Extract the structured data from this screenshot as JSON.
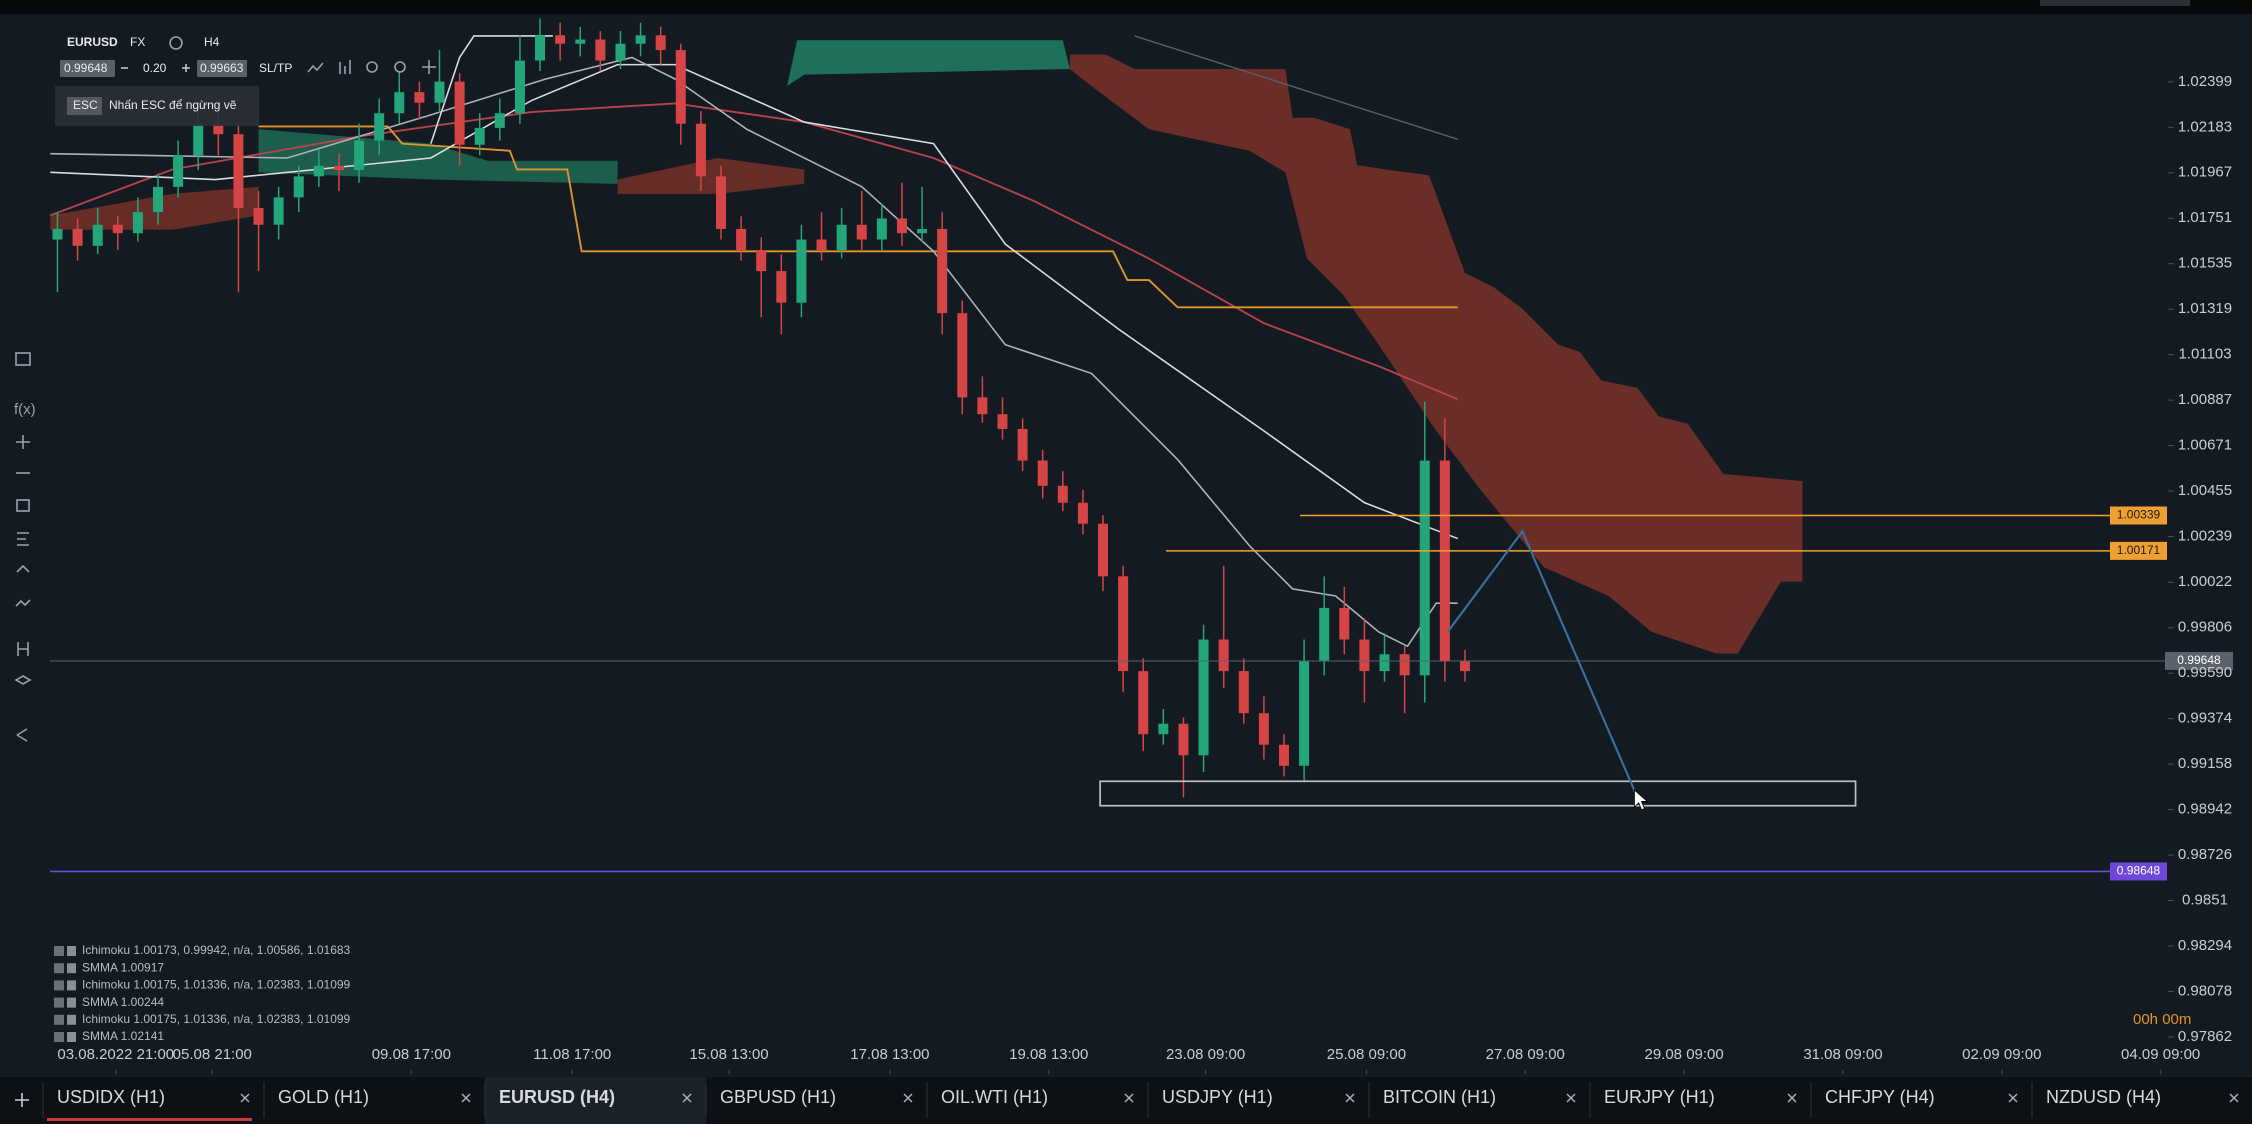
{
  "header": {
    "symbol": "EURUSD",
    "market": "FX",
    "timeframe": "H4",
    "bid": "0.99648",
    "spread": "0.20",
    "ask": "0.99663",
    "sltp": "SL/TP",
    "esc_key": "ESC",
    "esc_hint": "Nhấn ESC để ngừng vẽ"
  },
  "toolbar_label": "f(x)",
  "chart": {
    "type": "candlestick",
    "up_color": "#22a67a",
    "down_color": "#d64545",
    "ylim": [
      0.97705,
      1.02706
    ],
    "yticks": [
      1.02399,
      1.02183,
      1.01967,
      1.01751,
      1.01535,
      1.01319,
      1.01103,
      1.00887,
      1.00671,
      1.00455,
      1.00239,
      1.00022,
      0.99806,
      {
        "value": 0.9959,
        "label": "0.99590"
      },
      0.99374,
      0.99158,
      0.98942,
      0.98726,
      0.9851,
      0.98294,
      0.98078,
      0.97862
    ],
    "xlim": [
      -2.5,
      105
    ],
    "xticks": [
      {
        "value": 2.9,
        "label": "03.08.2022 21:00"
      },
      {
        "value": 7.7,
        "label": "05.08 21:00"
      },
      {
        "value": 17.6,
        "label": "09.08 17:00"
      },
      {
        "value": 25.6,
        "label": "11.08 17:00"
      },
      {
        "value": 33.4,
        "label": "15.08 13:00"
      },
      {
        "value": 41.4,
        "label": "17.08 13:00"
      },
      {
        "value": 49.3,
        "label": "19.08 13:00"
      },
      {
        "value": 57.1,
        "label": "23.08 09:00"
      },
      {
        "value": 65.1,
        "label": "25.08 09:00"
      },
      {
        "value": 73,
        "label": "27.08 09:00"
      },
      {
        "value": 80.9,
        "label": "29.08 09:00"
      },
      {
        "value": 88.8,
        "label": "31.08 09:00"
      },
      {
        "value": 96.7,
        "label": "02.09 09:00"
      },
      {
        "value": 104.6,
        "label": "04.09 09:00"
      }
    ],
    "candles": [
      [
        1.0165,
        1.0178,
        1.014,
        1.017
      ],
      [
        1.017,
        1.0175,
        1.0155,
        1.0162
      ],
      [
        1.0162,
        1.018,
        1.0158,
        1.0172
      ],
      [
        1.0172,
        1.0176,
        1.016,
        1.0168
      ],
      [
        1.0168,
        1.0185,
        1.0164,
        1.0178
      ],
      [
        1.0178,
        1.0196,
        1.0172,
        1.019
      ],
      [
        1.019,
        1.0212,
        1.0185,
        1.0205
      ],
      [
        1.0205,
        1.0228,
        1.0198,
        1.022
      ],
      [
        1.022,
        1.0226,
        1.0205,
        1.0215
      ],
      [
        1.0215,
        1.022,
        1.014,
        1.018
      ],
      [
        1.018,
        1.0188,
        1.015,
        1.0172
      ],
      [
        1.0172,
        1.019,
        1.0165,
        1.0185
      ],
      [
        1.0185,
        1.02,
        1.0178,
        1.0195
      ],
      [
        1.0195,
        1.0208,
        1.019,
        1.02
      ],
      [
        1.02,
        1.0206,
        1.0188,
        1.0198
      ],
      [
        1.0198,
        1.022,
        1.0192,
        1.0212
      ],
      [
        1.0212,
        1.0232,
        1.0205,
        1.0225
      ],
      [
        1.0225,
        1.0245,
        1.022,
        1.0235
      ],
      [
        1.0235,
        1.024,
        1.0222,
        1.023
      ],
      [
        1.023,
        1.0255,
        1.0225,
        1.024
      ],
      [
        1.024,
        1.0244,
        1.02,
        1.021
      ],
      [
        1.021,
        1.0225,
        1.0205,
        1.0218
      ],
      [
        1.0218,
        1.0232,
        1.0212,
        1.0225
      ],
      [
        1.0225,
        1.0262,
        1.022,
        1.025
      ],
      [
        1.025,
        1.027,
        1.0245,
        1.0262
      ],
      [
        1.0262,
        1.0268,
        1.025,
        1.0258
      ],
      [
        1.0258,
        1.0266,
        1.0252,
        1.026
      ],
      [
        1.026,
        1.0264,
        1.0245,
        1.025
      ],
      [
        1.025,
        1.0264,
        1.0246,
        1.0258
      ],
      [
        1.0258,
        1.0268,
        1.0252,
        1.0262
      ],
      [
        1.0262,
        1.0266,
        1.0248,
        1.0255
      ],
      [
        1.0255,
        1.0258,
        1.021,
        1.022
      ],
      [
        1.022,
        1.0226,
        1.0188,
        1.0195
      ],
      [
        1.0195,
        1.02,
        1.0165,
        1.017
      ],
      [
        1.017,
        1.0176,
        1.0155,
        1.016
      ],
      [
        1.016,
        1.0166,
        1.0128,
        1.015
      ],
      [
        1.015,
        1.0158,
        1.012,
        1.0135
      ],
      [
        1.0135,
        1.0172,
        1.0128,
        1.0165
      ],
      [
        1.0165,
        1.0178,
        1.0155,
        1.016
      ],
      [
        1.016,
        1.018,
        1.0156,
        1.0172
      ],
      [
        1.0172,
        1.0188,
        1.016,
        1.0165
      ],
      [
        1.0165,
        1.0182,
        1.016,
        1.0175
      ],
      [
        1.0175,
        1.0192,
        1.0162,
        1.0168
      ],
      [
        1.0168,
        1.019,
        1.0164,
        1.017
      ],
      [
        1.017,
        1.0178,
        1.012,
        1.013
      ],
      [
        1.013,
        1.0136,
        1.0082,
        1.009
      ],
      [
        1.009,
        1.01,
        1.0078,
        1.0082
      ],
      [
        1.0082,
        1.009,
        1.007,
        1.0075
      ],
      [
        1.0075,
        1.008,
        1.0055,
        1.006
      ],
      [
        1.006,
        1.0065,
        1.0042,
        1.0048
      ],
      [
        1.0048,
        1.0055,
        1.0036,
        1.004
      ],
      [
        1.004,
        1.0046,
        1.0025,
        1.003
      ],
      [
        1.003,
        1.0034,
        0.9998,
        1.0005
      ],
      [
        1.0005,
        1.001,
        0.995,
        0.996
      ],
      [
        0.996,
        0.9966,
        0.9922,
        0.993
      ],
      [
        0.993,
        0.9942,
        0.9925,
        0.9935
      ],
      [
        0.9935,
        0.9938,
        0.99,
        0.992
      ],
      [
        0.992,
        0.9982,
        0.9912,
        0.9975
      ],
      [
        0.9975,
        1.001,
        0.9952,
        0.996
      ],
      [
        0.996,
        0.9966,
        0.9935,
        0.994
      ],
      [
        0.994,
        0.9948,
        0.9918,
        0.9925
      ],
      [
        0.9925,
        0.993,
        0.991,
        0.9915
      ],
      [
        0.9915,
        0.9975,
        0.9908,
        0.9965
      ],
      [
        0.9965,
        1.0005,
        0.9958,
        0.999
      ],
      [
        0.999,
        1.0,
        0.9968,
        0.9975
      ],
      [
        0.9975,
        0.9985,
        0.9945,
        0.996
      ],
      [
        0.996,
        0.9978,
        0.9955,
        0.9968
      ],
      [
        0.9968,
        0.9972,
        0.994,
        0.9958
      ],
      [
        0.9958,
        1.0088,
        0.9945,
        1.006
      ],
      [
        1.006,
        1.008,
        0.9955,
        0.9965
      ],
      [
        0.9965,
        0.997,
        0.9955,
        0.996
      ]
    ],
    "levels": [
      {
        "value": 1.00339,
        "color": "#f0a030"
      },
      {
        "value": 1.00171,
        "color": "#f0a030"
      },
      {
        "value": 0.98648,
        "color": "#7048d8"
      },
      {
        "value": 0.99648,
        "color": "#5b626b"
      }
    ],
    "legend": [
      "Ichimoku 1.00173, 0.99942, n/a, 1.00586, 1.01683",
      "SMMA 1.00917",
      "Ichimoku 1.00175, 1.01336, n/a, 1.02383, 1.01099",
      "SMMA 1.00244",
      "Ichimoku 1.00175, 1.01336, n/a, 1.02383, 1.01099",
      "SMMA 1.02141"
    ],
    "timer": "00h 00m"
  },
  "tabs": [
    "USDIDX (H1)",
    "GOLD (H1)",
    "EURUSD (H4)",
    "GBPUSD (H1)",
    "OIL.WTI (H1)",
    "USDJPY (H1)",
    "BITCOIN (H1)",
    "EURJPY (H1)",
    "CHFJPY (H4)",
    "NZDUSD (H4)"
  ],
  "active_tab": 2
}
